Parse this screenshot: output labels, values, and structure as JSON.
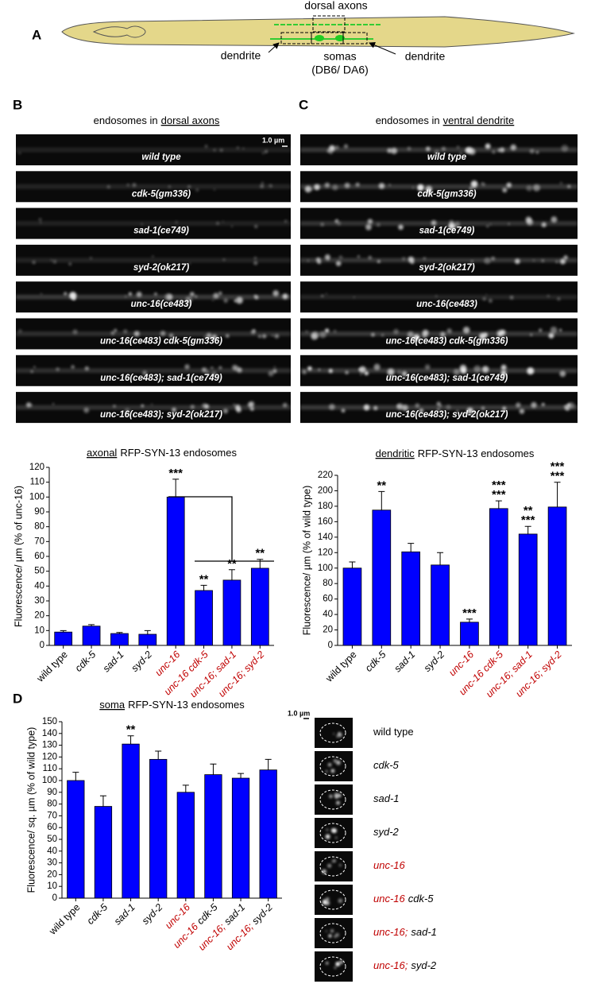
{
  "panel_a": {
    "label": "A",
    "dorsal_axons": "dorsal axons",
    "dendrite_left": "dendrite",
    "somas": "somas",
    "somas_sub": "(DB6/ DA6)",
    "dendrite_right": "dendrite"
  },
  "panel_b": {
    "label": "B",
    "heading_pre": "endosomes in",
    "heading_underlined": "dorsal axons",
    "scale_bar": "1.0 µm",
    "strips": [
      "wild type",
      "cdk-5(gm336)",
      "sad-1(ce749)",
      "syd-2(ok217)",
      "unc-16(ce483)",
      "unc-16(ce483) cdk-5(gm336)",
      "unc-16(ce483); sad-1(ce749)",
      "unc-16(ce483); syd-2(ok217)"
    ]
  },
  "panel_c": {
    "label": "C",
    "heading_pre": "endosomes in",
    "heading_underlined": "ventral dendrite",
    "strips": [
      "wild type",
      "cdk-5(gm336)",
      "sad-1(ce749)",
      "syd-2(ok217)",
      "unc-16(ce483)",
      "unc-16(ce483) cdk-5(gm336)",
      "unc-16(ce483); sad-1(ce749)",
      "unc-16(ce483); syd-2(ok217)"
    ]
  },
  "panel_d": {
    "label": "D",
    "scale_bar": "1.0 µm",
    "images": [
      [
        {
          "text": "wild type",
          "color": "#000000",
          "italic": false
        }
      ],
      [
        {
          "text": "cdk-5",
          "color": "#000000",
          "italic": true
        }
      ],
      [
        {
          "text": "sad-1",
          "color": "#000000",
          "italic": true
        }
      ],
      [
        {
          "text": "syd-2",
          "color": "#000000",
          "italic": true
        }
      ],
      [
        {
          "text": "unc-16",
          "color": "#c00000",
          "italic": true
        }
      ],
      [
        {
          "text": "unc-16",
          "color": "#c00000",
          "italic": true
        },
        {
          "text": "cdk-5",
          "color": "#000000",
          "italic": true
        }
      ],
      [
        {
          "text": "unc-16;",
          "color": "#c00000",
          "italic": true
        },
        {
          "text": "sad-1",
          "color": "#000000",
          "italic": true
        }
      ],
      [
        {
          "text": "unc-16;",
          "color": "#c00000",
          "italic": true
        },
        {
          "text": "syd-2",
          "color": "#000000",
          "italic": true
        }
      ]
    ]
  },
  "chart_data": [
    {
      "type": "bar",
      "title_underlined": "axonal",
      "title": "RFP-SYN-13 endosomes",
      "y_label": "Fluorescence/ µm (% of unc-16)",
      "categories": [
        [
          {
            "text": "wild type",
            "color": "#000000",
            "italic": false
          }
        ],
        [
          {
            "text": "cdk-5",
            "color": "#000000",
            "italic": true
          }
        ],
        [
          {
            "text": "sad-1",
            "color": "#000000",
            "italic": true
          }
        ],
        [
          {
            "text": "syd-2",
            "color": "#000000",
            "italic": true
          }
        ],
        [
          {
            "text": "unc-16",
            "color": "#c00000",
            "italic": true
          }
        ],
        [
          {
            "text": "unc-16 cdk-5",
            "color": "#c00000",
            "italic": true
          }
        ],
        [
          {
            "text": "unc-16; sad-1",
            "color": "#c00000",
            "italic": true
          }
        ],
        [
          {
            "text": "unc-16; syd-2",
            "color": "#c00000",
            "italic": true
          }
        ]
      ],
      "values": [
        9,
        13,
        8,
        7.5,
        100,
        37,
        44,
        52
      ],
      "errors": [
        1,
        1,
        0.7,
        2.5,
        12,
        3.5,
        7,
        6
      ],
      "color": "#0000ff",
      "ylim": [
        0,
        120
      ],
      "yticks": [
        0,
        10,
        20,
        30,
        40,
        50,
        60,
        70,
        80,
        90,
        100,
        110,
        120
      ],
      "significance": [
        [],
        [],
        [],
        [],
        [
          {
            "text": "***",
            "color": "#000000"
          }
        ],
        [
          {
            "text": "**",
            "color": "#c00000"
          }
        ],
        [
          {
            "text": "**",
            "color": "#c00000"
          }
        ],
        [
          {
            "text": "**",
            "color": "#c00000"
          }
        ]
      ]
    },
    {
      "type": "bar",
      "title_underlined": "dendritic",
      "title": "RFP-SYN-13 endosomes",
      "y_label": "Fluorescence/ µm (% of wild type)",
      "categories": [
        [
          {
            "text": "wild type",
            "color": "#000000",
            "italic": false
          }
        ],
        [
          {
            "text": "cdk-5",
            "color": "#000000",
            "italic": true
          }
        ],
        [
          {
            "text": "sad-1",
            "color": "#000000",
            "italic": true
          }
        ],
        [
          {
            "text": "syd-2",
            "color": "#000000",
            "italic": true
          }
        ],
        [
          {
            "text": "unc-16",
            "color": "#c00000",
            "italic": true
          }
        ],
        [
          {
            "text": "unc-16 cdk-5",
            "color": "#c00000",
            "italic": true
          }
        ],
        [
          {
            "text": "unc-16; sad-1",
            "color": "#c00000",
            "italic": true
          }
        ],
        [
          {
            "text": "unc-16; syd-2",
            "color": "#c00000",
            "italic": true
          }
        ]
      ],
      "values": [
        100,
        175,
        121,
        104,
        30,
        177,
        144,
        179
      ],
      "errors": [
        8,
        24,
        11,
        16,
        4,
        10,
        10,
        32
      ],
      "color": "#0000ff",
      "ylim": [
        0,
        220
      ],
      "yticks": [
        0,
        20,
        40,
        60,
        80,
        100,
        120,
        140,
        160,
        180,
        200,
        220
      ],
      "significance": [
        [],
        [
          {
            "text": "**",
            "color": "#000000"
          }
        ],
        [],
        [],
        [
          {
            "text": "***",
            "color": "#000000"
          }
        ],
        [
          {
            "text": "***",
            "color": "#000000"
          },
          {
            "text": "***",
            "color": "#c00000"
          }
        ],
        [
          {
            "text": "**",
            "color": "#000000"
          },
          {
            "text": "***",
            "color": "#c00000"
          }
        ],
        [
          {
            "text": "***",
            "color": "#000000"
          },
          {
            "text": "***",
            "color": "#c00000"
          }
        ]
      ]
    },
    {
      "type": "bar",
      "title_underlined": "soma",
      "title": "RFP-SYN-13 endosomes",
      "y_label": "Fluorescence/ sq. µm (% of wild type)",
      "categories": [
        [
          {
            "text": "wild type",
            "color": "#000000",
            "italic": false
          }
        ],
        [
          {
            "text": "cdk-5",
            "color": "#000000",
            "italic": true
          }
        ],
        [
          {
            "text": "sad-1",
            "color": "#000000",
            "italic": true
          }
        ],
        [
          {
            "text": "syd-2",
            "color": "#000000",
            "italic": true
          }
        ],
        [
          {
            "text": "unc-16",
            "color": "#c00000",
            "italic": true
          }
        ],
        [
          {
            "text": "unc-16",
            "color": "#c00000",
            "italic": true
          },
          {
            "text": "cdk-5",
            "color": "#000000",
            "italic": true
          }
        ],
        [
          {
            "text": "unc-16;",
            "color": "#c00000",
            "italic": true
          },
          {
            "text": "sad-1",
            "color": "#000000",
            "italic": true
          }
        ],
        [
          {
            "text": "unc-16;",
            "color": "#c00000",
            "italic": true
          },
          {
            "text": "syd-2",
            "color": "#000000",
            "italic": true
          }
        ]
      ],
      "values": [
        100,
        78,
        131,
        118,
        90,
        105,
        102,
        109
      ],
      "errors": [
        7,
        9,
        7,
        7,
        6,
        9,
        4,
        9
      ],
      "color": "#0000ff",
      "ylim": [
        0,
        150
      ],
      "yticks": [
        0,
        10,
        20,
        30,
        40,
        50,
        60,
        70,
        80,
        90,
        100,
        110,
        120,
        130,
        140,
        150
      ],
      "significance": [
        [],
        [],
        [
          {
            "text": "**",
            "color": "#000000"
          }
        ],
        [],
        [],
        [],
        [],
        []
      ]
    }
  ]
}
